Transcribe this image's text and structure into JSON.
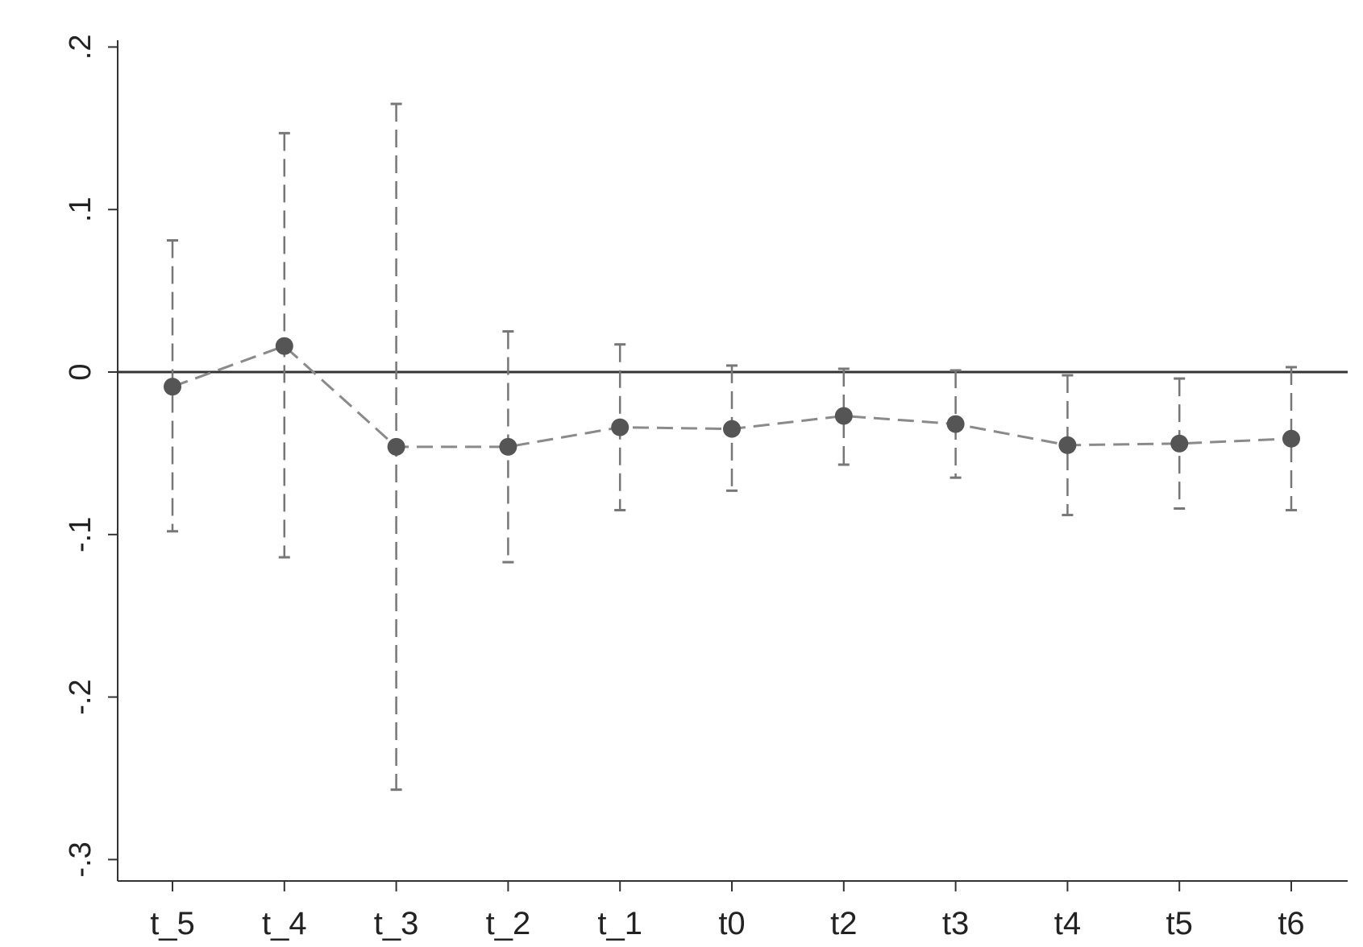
{
  "chart_data": {
    "type": "scatter",
    "title": "",
    "xlabel": "",
    "ylabel": "",
    "categories": [
      "t_5",
      "t_4",
      "t_3",
      "t_2",
      "t_1",
      "t0",
      "t2",
      "t3",
      "t4",
      "t5",
      "t6"
    ],
    "series": [
      {
        "values": [
          -0.009,
          0.016,
          -0.046,
          -0.046,
          -0.034,
          -0.035,
          -0.027,
          -0.032,
          -0.045,
          -0.044,
          -0.041
        ],
        "ci_upper": [
          0.081,
          0.147,
          0.165,
          0.025,
          0.017,
          0.004,
          0.002,
          0.001,
          -0.002,
          -0.004,
          0.003
        ],
        "ci_lower": [
          -0.098,
          -0.114,
          -0.257,
          -0.117,
          -0.085,
          -0.073,
          -0.057,
          -0.065,
          -0.088,
          -0.084,
          -0.085
        ]
      }
    ],
    "yticks": [
      ".2",
      ".1",
      "0",
      "-.1",
      "-.2",
      "-.3"
    ],
    "ytick_values": [
      0.2,
      0.1,
      0,
      -0.1,
      -0.2,
      -0.3
    ],
    "ylim": [
      -0.314,
      0.21
    ],
    "reference_line_y": 0,
    "grid": false,
    "legend": "none",
    "colors": {
      "point": "#555555",
      "connect_line": "#8a8a8a",
      "error_bar": "#777777",
      "reference_line": "#333333",
      "axis": "#333333"
    }
  }
}
